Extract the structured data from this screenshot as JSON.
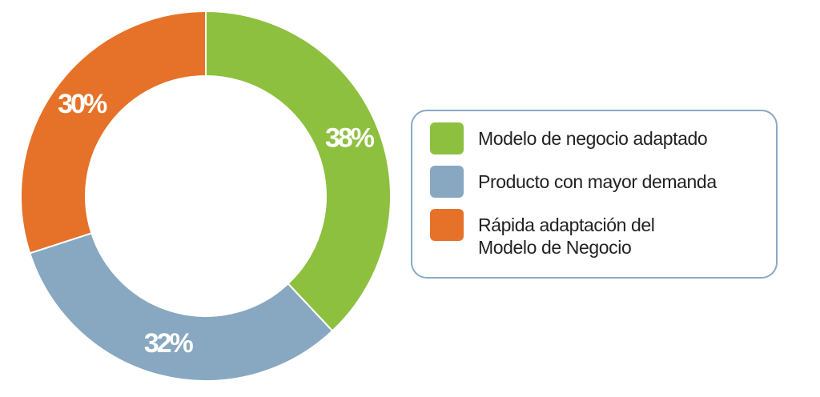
{
  "chart_data": {
    "type": "donut",
    "categories": [
      "Modelo de negocio adaptado",
      "Producto con mayor demanda",
      "Rápida adaptación del Modelo de Negocio"
    ],
    "values": [
      38,
      32,
      30
    ],
    "value_labels": [
      "38%",
      "32%",
      "30%"
    ],
    "colors": [
      "#8dc03f",
      "#87a8c0",
      "#e57228"
    ],
    "legend": "right"
  }
}
